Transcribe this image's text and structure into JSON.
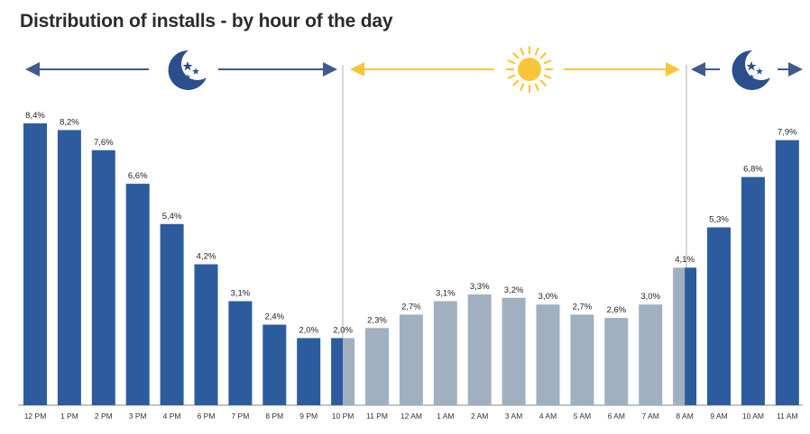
{
  "title": "Distribution of installs - by hour of the day",
  "colors": {
    "night": "#2C5C9E",
    "day": "#A0B0C0",
    "night_arrow": "#3F5A8C",
    "day_arrow": "#F8C63C",
    "moon": "#2A4F8C",
    "divider": "#BBBBBB",
    "axis": "#888888"
  },
  "icons": [
    "moon-stars-icon",
    "sun-icon",
    "moon-stars-icon"
  ],
  "chart_data": {
    "type": "bar",
    "categories": [
      "12 PM",
      "1 PM",
      "2 PM",
      "3 PM",
      "4 PM",
      "6 PM",
      "7 PM",
      "8 PM",
      "9 PM",
      "10 PM",
      "11 PM",
      "12 AM",
      "1 AM",
      "2 AM",
      "3 AM",
      "4 AM",
      "5 AM",
      "6 AM",
      "7 AM",
      "8 AM",
      "9 AM",
      "10 AM",
      "11 AM"
    ],
    "values": [
      8.4,
      8.2,
      7.6,
      6.6,
      5.4,
      4.2,
      3.1,
      2.4,
      2.0,
      2.0,
      2.3,
      2.7,
      3.1,
      3.3,
      3.2,
      3.0,
      2.7,
      2.6,
      3.0,
      4.1,
      5.3,
      6.8,
      7.9
    ],
    "value_labels": [
      "8,4%",
      "8,2%",
      "7,6%",
      "6,6%",
      "5,4%",
      "4,2%",
      "3,1%",
      "2,4%",
      "2,0%",
      "2,0%",
      "2,3%",
      "2,7%",
      "3,1%",
      "3,3%",
      "3,2%",
      "3,0%",
      "2,7%",
      "2,6%",
      "3,0%",
      "4,1%",
      "5,3%",
      "6,8%",
      "7,9%"
    ],
    "periods": [
      "night",
      "night",
      "night",
      "night",
      "night",
      "night",
      "night",
      "night",
      "night",
      "night-day",
      "day",
      "day",
      "day",
      "day",
      "day",
      "day",
      "day",
      "day",
      "day",
      "day-night",
      "night",
      "night",
      "night"
    ],
    "ylim": [
      0,
      8.4
    ],
    "grid": false,
    "legend": "none"
  }
}
